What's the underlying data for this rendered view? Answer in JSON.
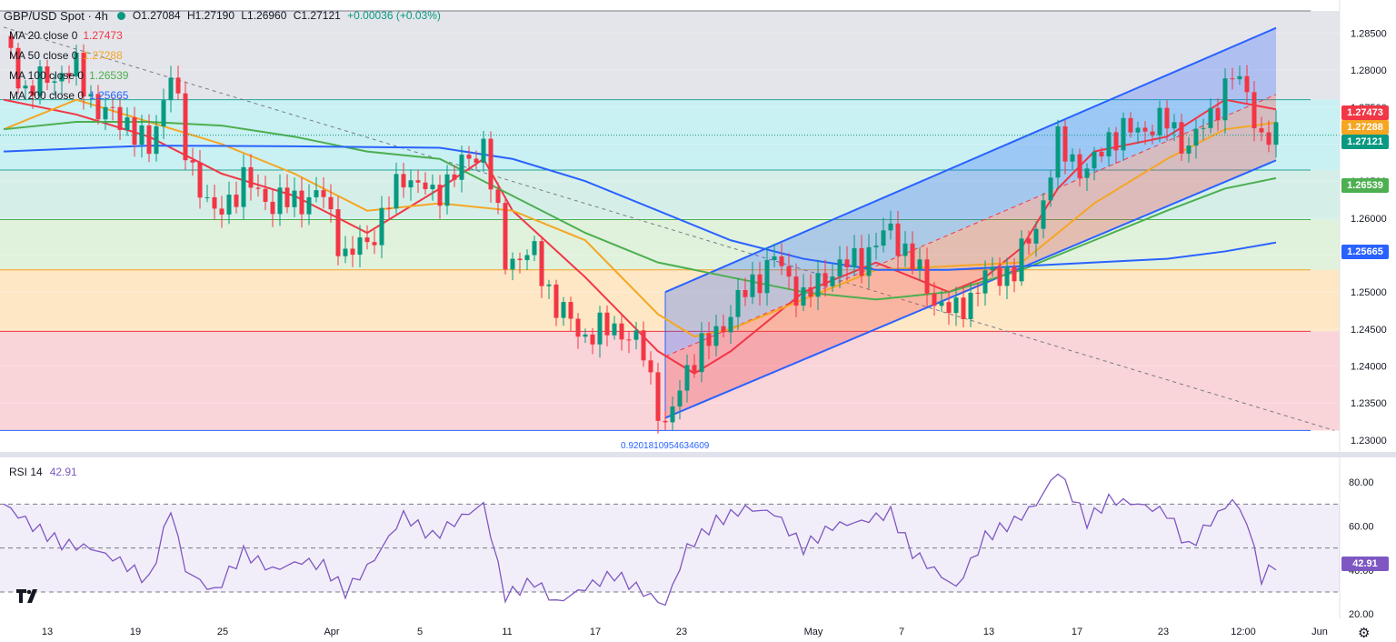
{
  "header": {
    "symbol": "GBP/USD Spot · 4h",
    "ohlc": {
      "open": "O1.27084",
      "high": "H1.27190",
      "low": "L1.26960",
      "close": "C1.27121",
      "change": "+0.00036 (+0.03%)"
    }
  },
  "legend": [
    {
      "name": "MA 20 close 0",
      "value": "1.27473",
      "color": "#f23645"
    },
    {
      "name": "MA 50 close 0",
      "value": "1.27288",
      "color": "#f5a623"
    },
    {
      "name": "MA 100 close 0",
      "value": "1.26539",
      "color": "#4caf50"
    },
    {
      "name": "MA 200 close 0",
      "value": "1.25665",
      "color": "#2962ff"
    }
  ],
  "price_tags": [
    {
      "text": "1.27473",
      "value": 1.27473,
      "color": "#f23645"
    },
    {
      "text": "1.27288",
      "value": 1.27288,
      "color": "#f5a623"
    },
    {
      "text": "1.27121",
      "value": 1.27121,
      "color": "#089981"
    },
    {
      "text": "1.26539",
      "value": 1.26539,
      "color": "#4caf50"
    },
    {
      "text": "1.25665",
      "value": 1.25665,
      "color": "#2962ff"
    }
  ],
  "rsi": {
    "name": "RSI 14",
    "value": "42.91",
    "tag": "42.91",
    "color": "#7e57c2"
  },
  "fib_label": "0.9201810954634609",
  "colors": {
    "up": "#089981",
    "down": "#f23645",
    "channel": "#2962ff"
  },
  "chart_data": [
    {
      "type": "candlestick",
      "ylim": [
        1.2295,
        1.288
      ],
      "y_ticks": [
        "1.28500",
        "1.28000",
        "1.27500",
        "1.27000",
        "1.26500",
        "1.26000",
        "1.25500",
        "1.25000",
        "1.24500",
        "1.24000",
        "1.23500",
        "1.23000"
      ],
      "y_tick_values": [
        1.285,
        1.28,
        1.275,
        1.27,
        1.265,
        1.26,
        1.255,
        1.25,
        1.245,
        1.24,
        1.235,
        1.23
      ],
      "x_ticks": [
        "13",
        "19",
        "25",
        "Apr",
        "5",
        "11",
        "17",
        "23",
        "May",
        "7",
        "13",
        "17",
        "23",
        "12:00",
        "Jun"
      ],
      "price_path": [
        [
          0,
          1.2846
        ],
        [
          3,
          1.277
        ],
        [
          6,
          1.279
        ],
        [
          10,
          1.28
        ],
        [
          13,
          1.2745
        ],
        [
          17,
          1.273
        ],
        [
          20,
          1.269
        ],
        [
          23,
          1.28
        ],
        [
          25,
          1.269
        ],
        [
          29,
          1.26
        ],
        [
          33,
          1.265
        ],
        [
          37,
          1.262
        ],
        [
          41,
          1.2625
        ],
        [
          44,
          1.263
        ],
        [
          47,
          1.2545
        ],
        [
          51,
          1.258
        ],
        [
          55,
          1.266
        ],
        [
          59,
          1.263
        ],
        [
          63,
          1.267
        ],
        [
          66,
          1.27
        ],
        [
          69,
          1.2545
        ],
        [
          73,
          1.255
        ],
        [
          76,
          1.248
        ],
        [
          80,
          1.244
        ],
        [
          84,
          1.2455
        ],
        [
          88,
          1.242
        ],
        [
          91,
          1.231
        ],
        [
          94,
          1.24
        ],
        [
          98,
          1.2445
        ],
        [
          102,
          1.25
        ],
        [
          106,
          1.2545
        ],
        [
          110,
          1.249
        ],
        [
          114,
          1.253
        ],
        [
          118,
          1.2545
        ],
        [
          122,
          1.2585
        ],
        [
          125,
          1.254
        ],
        [
          128,
          1.249
        ],
        [
          131,
          1.247
        ],
        [
          135,
          1.252
        ],
        [
          139,
          1.253
        ],
        [
          142,
          1.259
        ],
        [
          145,
          1.27
        ],
        [
          149,
          1.266
        ],
        [
          152,
          1.271
        ],
        [
          156,
          1.272
        ],
        [
          160,
          1.273
        ],
        [
          163,
          1.2695
        ],
        [
          166,
          1.274
        ],
        [
          169,
          1.279
        ],
        [
          171,
          1.2775
        ],
        [
          173,
          1.27
        ],
        [
          175,
          1.2712
        ]
      ],
      "series": [
        {
          "name": "MA 20 close 0",
          "color": "#f23645",
          "values": [
            [
              0,
              1.276
            ],
            [
              10,
              1.274
            ],
            [
              20,
              1.271
            ],
            [
              30,
              1.266
            ],
            [
              40,
              1.263
            ],
            [
              50,
              1.258
            ],
            [
              60,
              1.264
            ],
            [
              66,
              1.268
            ],
            [
              70,
              1.261
            ],
            [
              80,
              1.252
            ],
            [
              90,
              1.242
            ],
            [
              95,
              1.239
            ],
            [
              100,
              1.242
            ],
            [
              110,
              1.25
            ],
            [
              120,
              1.254
            ],
            [
              125,
              1.252
            ],
            [
              130,
              1.25
            ],
            [
              135,
              1.252
            ],
            [
              140,
              1.256
            ],
            [
              145,
              1.264
            ],
            [
              150,
              1.269
            ],
            [
              160,
              1.271
            ],
            [
              168,
              1.276
            ],
            [
              175,
              1.2747
            ]
          ]
        },
        {
          "name": "MA 50 close 0",
          "color": "#f5a623",
          "values": [
            [
              0,
              1.272
            ],
            [
              10,
              1.276
            ],
            [
              20,
              1.273
            ],
            [
              30,
              1.27
            ],
            [
              40,
              1.266
            ],
            [
              50,
              1.261
            ],
            [
              60,
              1.262
            ],
            [
              70,
              1.261
            ],
            [
              80,
              1.257
            ],
            [
              90,
              1.247
            ],
            [
              95,
              1.244
            ],
            [
              100,
              1.245
            ],
            [
              110,
              1.249
            ],
            [
              120,
              1.253
            ],
            [
              130,
              1.2535
            ],
            [
              140,
              1.254
            ],
            [
              150,
              1.262
            ],
            [
              160,
              1.268
            ],
            [
              168,
              1.272
            ],
            [
              175,
              1.2729
            ]
          ]
        },
        {
          "name": "MA 100 close 0",
          "color": "#4caf50",
          "values": [
            [
              0,
              1.272
            ],
            [
              10,
              1.273
            ],
            [
              20,
              1.273
            ],
            [
              30,
              1.2725
            ],
            [
              40,
              1.271
            ],
            [
              50,
              1.269
            ],
            [
              60,
              1.268
            ],
            [
              70,
              1.263
            ],
            [
              80,
              1.258
            ],
            [
              90,
              1.254
            ],
            [
              100,
              1.252
            ],
            [
              110,
              1.25
            ],
            [
              120,
              1.249
            ],
            [
              130,
              1.25
            ],
            [
              140,
              1.253
            ],
            [
              150,
              1.257
            ],
            [
              160,
              1.261
            ],
            [
              168,
              1.264
            ],
            [
              175,
              1.2654
            ]
          ]
        },
        {
          "name": "MA 200 close 0",
          "color": "#2962ff",
          "values": [
            [
              0,
              1.269
            ],
            [
              20,
              1.2698
            ],
            [
              40,
              1.2697
            ],
            [
              60,
              1.2695
            ],
            [
              70,
              1.268
            ],
            [
              80,
              1.265
            ],
            [
              90,
              1.261
            ],
            [
              100,
              1.257
            ],
            [
              110,
              1.2545
            ],
            [
              120,
              1.253
            ],
            [
              130,
              1.253
            ],
            [
              140,
              1.2535
            ],
            [
              150,
              1.254
            ],
            [
              160,
              1.2545
            ],
            [
              168,
              1.2555
            ],
            [
              175,
              1.2567
            ]
          ]
        }
      ],
      "channel": {
        "upper": [
          [
            91,
            1.25
          ],
          [
            175,
            1.2857
          ]
        ],
        "lower": [
          [
            91,
            1.233
          ],
          [
            175,
            1.2678
          ]
        ],
        "middle": [
          [
            91,
            1.2413
          ],
          [
            175,
            1.2767
          ]
        ]
      },
      "fib_levels": [
        1.288,
        1.276,
        1.2665,
        1.2598,
        1.253,
        1.2447,
        1.2313
      ],
      "fib_fills": [
        "#e3e5ea",
        "#c9f0f2",
        "#d5efe8",
        "#e0f1dc",
        "#fde7c5",
        "#f9d4d8"
      ],
      "trendline": [
        [
          0,
          1.2858
        ],
        [
          183,
          1.2313
        ]
      ]
    },
    {
      "type": "line",
      "name": "RSI 14",
      "ylim": [
        18,
        90
      ],
      "y_ticks": [
        "80.00",
        "60.00",
        "40.00",
        "20.00"
      ],
      "y_tick_values": [
        80,
        60,
        40,
        20
      ],
      "bands": [
        70,
        50,
        30
      ],
      "values": [
        [
          0,
          70
        ],
        [
          4,
          60
        ],
        [
          8,
          52
        ],
        [
          12,
          50
        ],
        [
          16,
          44
        ],
        [
          20,
          35
        ],
        [
          23,
          68
        ],
        [
          25,
          40
        ],
        [
          29,
          30
        ],
        [
          33,
          48
        ],
        [
          37,
          40
        ],
        [
          41,
          44
        ],
        [
          44,
          42
        ],
        [
          47,
          30
        ],
        [
          51,
          45
        ],
        [
          55,
          65
        ],
        [
          59,
          55
        ],
        [
          63,
          64
        ],
        [
          66,
          70
        ],
        [
          69,
          28
        ],
        [
          73,
          35
        ],
        [
          76,
          25
        ],
        [
          80,
          32
        ],
        [
          84,
          38
        ],
        [
          88,
          30
        ],
        [
          91,
          24
        ],
        [
          94,
          50
        ],
        [
          98,
          62
        ],
        [
          102,
          68
        ],
        [
          106,
          66
        ],
        [
          110,
          50
        ],
        [
          114,
          60
        ],
        [
          118,
          62
        ],
        [
          122,
          66
        ],
        [
          125,
          48
        ],
        [
          128,
          40
        ],
        [
          131,
          32
        ],
        [
          135,
          55
        ],
        [
          139,
          62
        ],
        [
          142,
          70
        ],
        [
          145,
          85
        ],
        [
          149,
          62
        ],
        [
          152,
          72
        ],
        [
          156,
          70
        ],
        [
          160,
          66
        ],
        [
          163,
          50
        ],
        [
          166,
          62
        ],
        [
          169,
          72
        ],
        [
          171,
          62
        ],
        [
          173,
          36
        ],
        [
          175,
          43
        ]
      ]
    }
  ]
}
